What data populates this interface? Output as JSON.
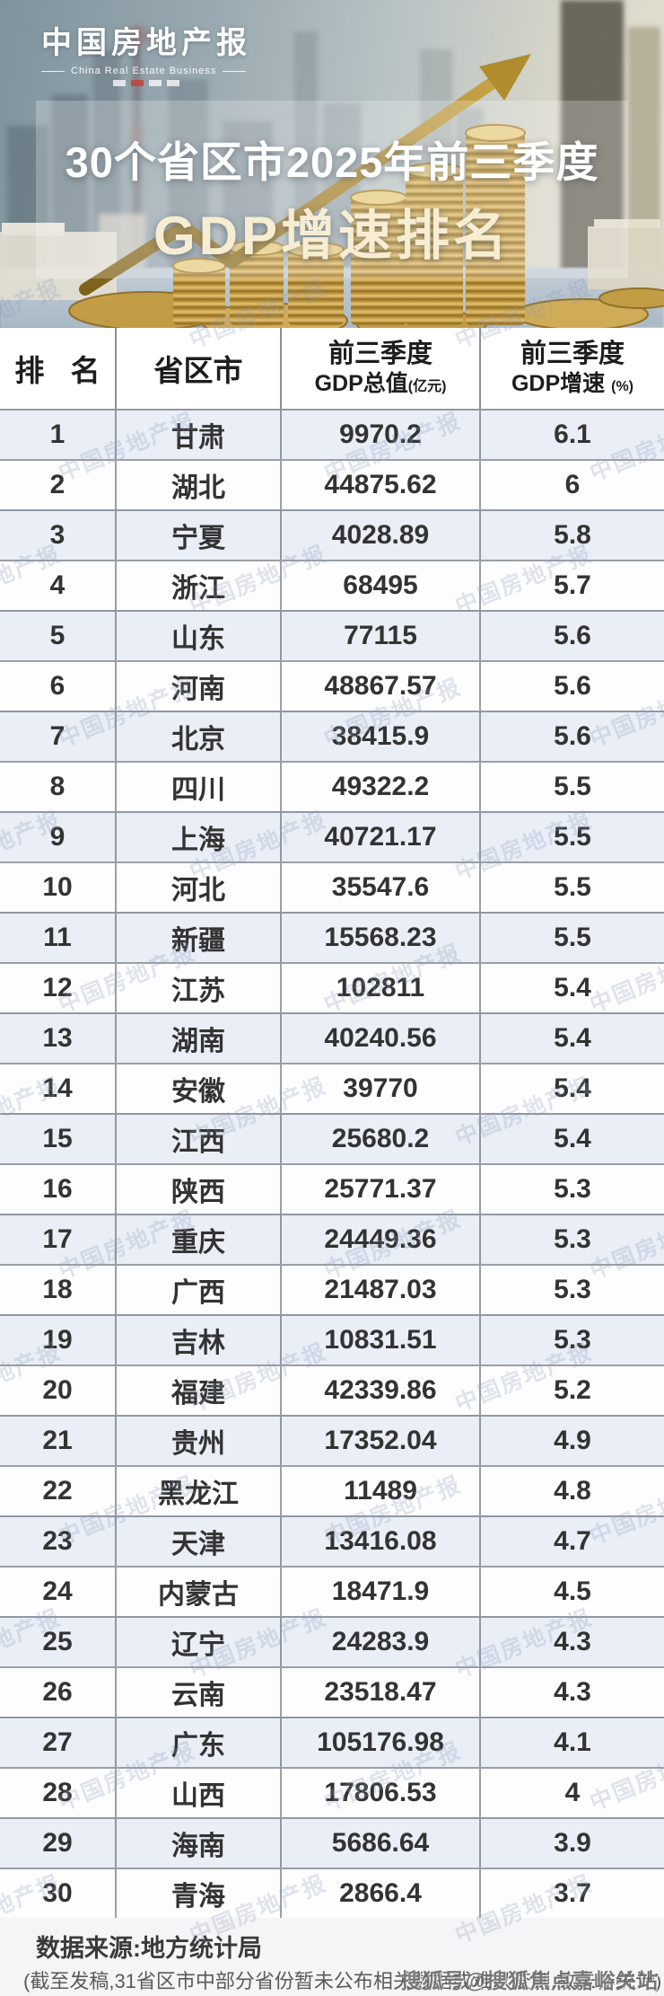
{
  "header": {
    "logo": {
      "title": "中国房地产报",
      "subtitle": "China Real Estate Business"
    },
    "title_line1": "30个省区市2025年前三季度",
    "title_line2": "GDP增速排名"
  },
  "watermark": {
    "text": "中国房地产报"
  },
  "table_header": {
    "rank": "排 名",
    "province": "省区市",
    "gdp_line1": "前三季度",
    "gdp_line2": "GDP总值",
    "gdp_unit": "(亿元)",
    "growth_line1": "前三季度",
    "growth_line2": "GDP增速",
    "growth_unit": "(%)"
  },
  "chart_data": {
    "type": "table",
    "title": "30个省区市2025年前三季度GDP增速排名",
    "columns": [
      "排名",
      "省区市",
      "前三季度GDP总值(亿元)",
      "前三季度GDP增速(%)"
    ],
    "rows": [
      [
        1,
        "甘肃",
        "9970.2",
        "6.1"
      ],
      [
        2,
        "湖北",
        "44875.62",
        "6"
      ],
      [
        3,
        "宁夏",
        "4028.89",
        "5.8"
      ],
      [
        4,
        "浙江",
        "68495",
        "5.7"
      ],
      [
        5,
        "山东",
        "77115",
        "5.6"
      ],
      [
        6,
        "河南",
        "48867.57",
        "5.6"
      ],
      [
        7,
        "北京",
        "38415.9",
        "5.6"
      ],
      [
        8,
        "四川",
        "49322.2",
        "5.5"
      ],
      [
        9,
        "上海",
        "40721.17",
        "5.5"
      ],
      [
        10,
        "河北",
        "35547.6",
        "5.5"
      ],
      [
        11,
        "新疆",
        "15568.23",
        "5.5"
      ],
      [
        12,
        "江苏",
        "102811",
        "5.4"
      ],
      [
        13,
        "湖南",
        "40240.56",
        "5.4"
      ],
      [
        14,
        "安徽",
        "39770",
        "5.4"
      ],
      [
        15,
        "江西",
        "25680.2",
        "5.4"
      ],
      [
        16,
        "陕西",
        "25771.37",
        "5.3"
      ],
      [
        17,
        "重庆",
        "24449.36",
        "5.3"
      ],
      [
        18,
        "广西",
        "21487.03",
        "5.3"
      ],
      [
        19,
        "吉林",
        "10831.51",
        "5.3"
      ],
      [
        20,
        "福建",
        "42339.86",
        "5.2"
      ],
      [
        21,
        "贵州",
        "17352.04",
        "4.9"
      ],
      [
        22,
        "黑龙江",
        "11489",
        "4.8"
      ],
      [
        23,
        "天津",
        "13416.08",
        "4.7"
      ],
      [
        24,
        "内蒙古",
        "18471.9",
        "4.5"
      ],
      [
        25,
        "辽宁",
        "24283.9",
        "4.3"
      ],
      [
        26,
        "云南",
        "23518.47",
        "4.3"
      ],
      [
        27,
        "广东",
        "105176.98",
        "4.1"
      ],
      [
        28,
        "山西",
        "17806.53",
        "4"
      ],
      [
        29,
        "海南",
        "5686.64",
        "3.9"
      ],
      [
        30,
        "青海",
        "2866.4",
        "3.7"
      ]
    ]
  },
  "footer": {
    "source": "数据来源:地方统计局",
    "note": "(截至发稿,31省区市中部分省份暂未公布相关数据或难以查到,故未作统计)",
    "overlay_watermark": "搜狐号@搜狐焦点嘉峪关站"
  },
  "colors": {
    "stripe_blue": "#e9eef7",
    "table_border": "#4b525c",
    "gold": "#c9a24a",
    "title_cream": "#f6edd3",
    "watermark_gray": "#8c9bb4"
  }
}
